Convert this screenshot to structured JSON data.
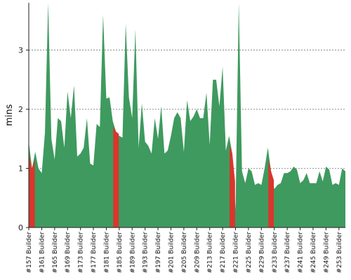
{
  "chart_data": {
    "type": "area",
    "title": "",
    "xlabel": "",
    "ylabel": "mins",
    "ylim": [
      0,
      3.8
    ],
    "yticks": [
      0,
      1,
      2,
      3
    ],
    "grid": "horizontal dashed at y ticks",
    "legend": "none",
    "colors": {
      "success": "#3f9a5f",
      "failure": "#d9362c",
      "grid": "#777777"
    },
    "x": [
      "157",
      "158",
      "159",
      "160",
      "161",
      "162",
      "163",
      "164",
      "165",
      "166",
      "167",
      "168",
      "169",
      "170",
      "171",
      "172",
      "173",
      "174",
      "175",
      "176",
      "177",
      "178",
      "179",
      "180",
      "181",
      "182",
      "183",
      "184",
      "185",
      "186",
      "187",
      "188",
      "189",
      "190",
      "191",
      "192",
      "193",
      "194",
      "195",
      "196",
      "197",
      "198",
      "199",
      "200",
      "201",
      "202",
      "203",
      "204",
      "205",
      "206",
      "207",
      "208",
      "209",
      "210",
      "211",
      "212",
      "213",
      "214",
      "215",
      "216",
      "217",
      "218",
      "219",
      "220",
      "221",
      "222",
      "223",
      "224",
      "225",
      "226",
      "227",
      "228",
      "229",
      "230",
      "231",
      "232",
      "233",
      "234",
      "235",
      "236",
      "237",
      "238",
      "239",
      "240",
      "241",
      "242",
      "243",
      "244",
      "245",
      "246",
      "247",
      "248",
      "249",
      "250",
      "251",
      "252",
      "253",
      "254",
      "255"
    ],
    "x_tick_labels": [
      "#157 Builder",
      "#161 Builder",
      "#165 Builder",
      "#169 Builder",
      "#173 Builder",
      "#177 Builder",
      "#181 Builder",
      "#185 Builder",
      "#189 Builder",
      "#193 Builder",
      "#197 Builder",
      "#201 Builder",
      "#205 Builder",
      "#209 Builder",
      "#213 Builder",
      "#217 Builder",
      "#221 Builder",
      "#225 Builder",
      "#229 Builder",
      "#233 Builder",
      "#237 Builder",
      "#241 Builder",
      "#245 Builder",
      "#249 Builder",
      "#253 Builder"
    ],
    "values": [
      1.45,
      1.0,
      1.28,
      1.0,
      0.92,
      1.6,
      3.8,
      1.5,
      1.15,
      1.85,
      1.8,
      1.35,
      2.3,
      1.85,
      2.4,
      1.2,
      1.25,
      1.35,
      1.85,
      1.08,
      1.05,
      1.75,
      1.7,
      3.6,
      2.18,
      2.2,
      1.8,
      1.62,
      1.55,
      1.52,
      3.45,
      2.2,
      1.85,
      3.35,
      1.35,
      2.1,
      1.45,
      1.38,
      1.25,
      1.85,
      1.5,
      2.05,
      1.25,
      1.3,
      1.55,
      1.85,
      1.95,
      1.85,
      1.28,
      2.15,
      1.8,
      1.88,
      2.0,
      1.85,
      1.85,
      2.28,
      1.4,
      2.5,
      2.5,
      2.05,
      2.72,
      1.3,
      1.55,
      1.25,
      0.3,
      3.8,
      0.95,
      0.75,
      1.0,
      0.95,
      0.72,
      0.75,
      0.72,
      1.0,
      1.35,
      0.95,
      0.65,
      0.72,
      0.75,
      0.92,
      0.92,
      0.95,
      1.03,
      0.98,
      0.75,
      0.8,
      0.92,
      0.75,
      0.75,
      0.75,
      0.95,
      0.78,
      1.03,
      0.98,
      0.72,
      0.75,
      0.72,
      1.0,
      0.95
    ],
    "failed_builds": [
      "158",
      "184",
      "220",
      "232"
    ]
  }
}
